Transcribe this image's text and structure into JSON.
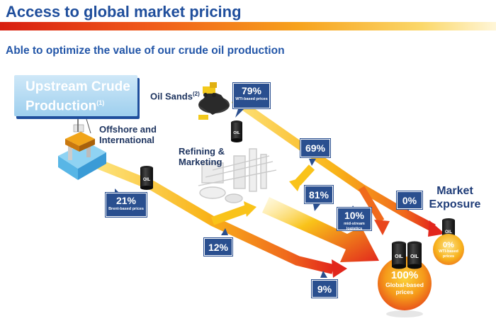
{
  "header": {
    "title": "Access to global market pricing",
    "subtitle": "Able to optimize the value of our crude oil production"
  },
  "upstream": {
    "title": "Upstream Crude Production",
    "note": "(1)"
  },
  "sources": {
    "oil_sands": {
      "label": "Oil Sands",
      "note": "(2)"
    },
    "offshore": {
      "label": "Offshore and International"
    },
    "refining": {
      "label": "Refining & Marketing"
    }
  },
  "market_exposure": {
    "label": "Market Exposure"
  },
  "badges": {
    "wti_79": {
      "pct": "79%",
      "sub": "WTI-based prices"
    },
    "brent_21": {
      "pct": "21%",
      "sub": "Brent-based prices"
    },
    "b69": {
      "pct": "69%"
    },
    "b81": {
      "pct": "81%"
    },
    "b10": {
      "pct": "10%",
      "sub": "mid-stream logistics"
    },
    "b0": {
      "pct": "0%"
    },
    "b12": {
      "pct": "12%"
    },
    "b9": {
      "pct": "9%"
    }
  },
  "outcomes": {
    "global": {
      "pct": "100%",
      "label": "Global-based prices"
    },
    "wti": {
      "pct": "0%",
      "label": "WTI-based prices"
    }
  },
  "barrel_label": "OIL",
  "icons": {
    "platform": "offshore-platform-icon",
    "mining": "oil-sands-mining-icon",
    "refinery": "refinery-icon",
    "barrel": "oil-barrel-icon"
  },
  "colors": {
    "title_blue": "#1f4e9c",
    "badge_blue": "#2a4f8f",
    "arrow_yellow": "#f9c31a",
    "arrow_red": "#e2261c"
  }
}
